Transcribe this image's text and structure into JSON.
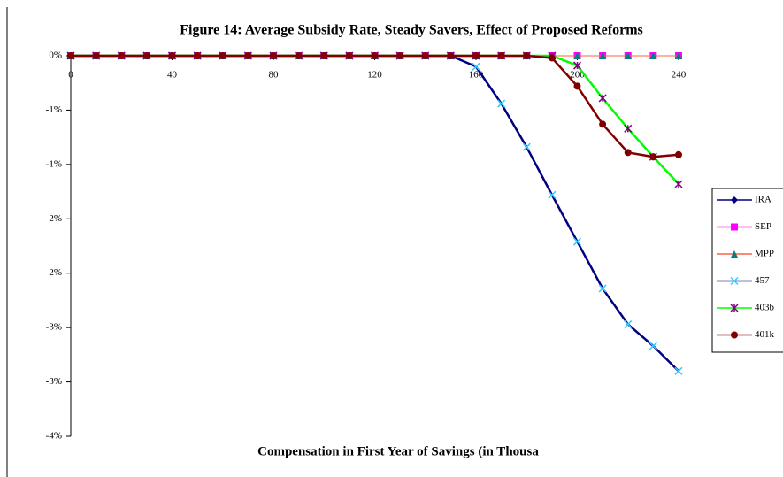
{
  "chart_data": {
    "type": "line",
    "title": "Figure 14:  Average Subsidy Rate, Steady Savers, Effect of Proposed Reforms",
    "x_label": "Compensation in First Year of Savings (in Thousa",
    "x": [
      0,
      10,
      20,
      30,
      40,
      50,
      60,
      70,
      80,
      90,
      100,
      110,
      120,
      130,
      140,
      150,
      160,
      170,
      180,
      190,
      200,
      210,
      220,
      230,
      240
    ],
    "xlim": [
      0,
      240
    ],
    "xticks": [
      0,
      40,
      80,
      120,
      160,
      200,
      240
    ],
    "ylim": [
      -3.5,
      0
    ],
    "yticks": [
      {
        "value": 0,
        "label": "0%"
      },
      {
        "value": -0.5,
        "label": "-1%"
      },
      {
        "value": -1,
        "label": "-1%"
      },
      {
        "value": -1.5,
        "label": "-2%"
      },
      {
        "value": -2,
        "label": "-2%"
      },
      {
        "value": -2.5,
        "label": "-3%"
      },
      {
        "value": -3,
        "label": "-3%"
      },
      {
        "value": -3.5,
        "label": "-4%"
      }
    ],
    "legend": "right",
    "series": [
      {
        "name": "IRA",
        "color": "#000080",
        "marker_color": "#000080",
        "marker": "diamond",
        "values": [
          0,
          0,
          0,
          0,
          0,
          0,
          0,
          0,
          0,
          0,
          0,
          0,
          0,
          0,
          0,
          0,
          0,
          0,
          0,
          0,
          0,
          0,
          0,
          0,
          0
        ]
      },
      {
        "name": "SEP",
        "color": "#ff00ff",
        "marker_color": "#ff00ff",
        "marker": "square",
        "values": [
          0,
          0,
          0,
          0,
          0,
          0,
          0,
          0,
          0,
          0,
          0,
          0,
          0,
          0,
          0,
          0,
          0,
          0,
          0,
          0,
          0,
          0,
          0,
          0,
          0
        ]
      },
      {
        "name": "MPP",
        "color": "#ff6040",
        "marker_color": "#008080",
        "marker": "triangle",
        "values": [
          0,
          0,
          0,
          0,
          0,
          0,
          0,
          0,
          0,
          0,
          0,
          0,
          0,
          0,
          0,
          0,
          0,
          0,
          0,
          0,
          0,
          0,
          0,
          0,
          0
        ]
      },
      {
        "name": "457",
        "color": "#000080",
        "marker_color": "#33ccff",
        "marker": "x",
        "values": [
          0,
          0,
          0,
          0,
          0,
          0,
          0,
          0,
          0,
          0,
          0,
          0,
          0,
          0,
          0,
          0,
          -0.1,
          -0.44,
          -0.84,
          -1.28,
          -1.71,
          -2.14,
          -2.47,
          -2.67,
          -2.9
        ]
      },
      {
        "name": "403b",
        "color": "#00ff00",
        "marker_color": "#800080",
        "marker": "star",
        "values": [
          0,
          0,
          0,
          0,
          0,
          0,
          0,
          0,
          0,
          0,
          0,
          0,
          0,
          0,
          0,
          0,
          0,
          0,
          0,
          0,
          -0.09,
          -0.39,
          -0.67,
          -0.93,
          -1.18
        ]
      },
      {
        "name": "401k",
        "color": "#800000",
        "marker_color": "#800000",
        "marker": "circle",
        "values": [
          0,
          0,
          0,
          0,
          0,
          0,
          0,
          0,
          0,
          0,
          0,
          0,
          0,
          0,
          0,
          0,
          0,
          0,
          0,
          -0.02,
          -0.28,
          -0.63,
          -0.89,
          -0.93,
          -0.91
        ]
      }
    ]
  }
}
